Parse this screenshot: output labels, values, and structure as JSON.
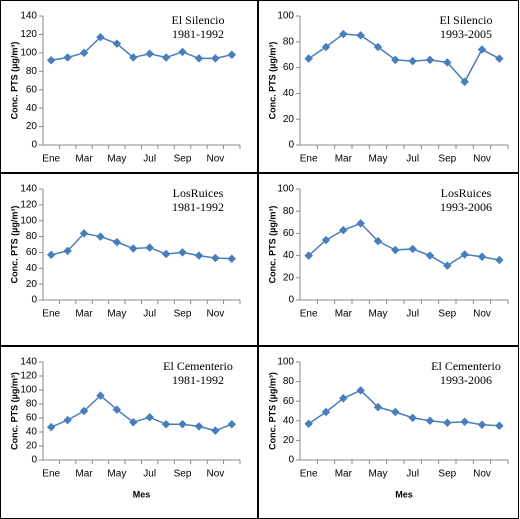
{
  "chart_data": [
    {
      "type": "line",
      "title": "El Silencio",
      "subtitle": "1981-1992",
      "y_label": "Conc. PTS (µg/m³)",
      "categories": [
        "Ene",
        null,
        "Mar",
        null,
        "May",
        null,
        "Jul",
        null,
        "Sep",
        null,
        "Nov",
        null
      ],
      "series": [
        {
          "color": "#4a7ebb",
          "values": [
            92,
            95,
            100,
            117,
            110,
            95,
            99,
            95,
            101,
            94,
            94,
            98
          ]
        }
      ],
      "ylim": [
        0,
        140
      ],
      "yticks": [
        0,
        20,
        40,
        60,
        80,
        100,
        120,
        140
      ]
    },
    {
      "type": "line",
      "title": "El Silencio",
      "subtitle": "1993-2005",
      "y_label": "Conc. PTS (µg/m³)",
      "categories": [
        "Ene",
        null,
        "Mar",
        null,
        "May",
        null,
        "Jul",
        null,
        "Sep",
        null,
        "Nov",
        null
      ],
      "series": [
        {
          "color": "#4a7ebb",
          "values": [
            67,
            76,
            86,
            85,
            76,
            66,
            65,
            66,
            64,
            49,
            74,
            67
          ]
        }
      ],
      "ylim": [
        0,
        100
      ],
      "yticks": [
        0,
        20,
        40,
        60,
        80,
        100
      ]
    },
    {
      "type": "line",
      "title": "LosRuices",
      "subtitle": "1981-1992",
      "y_label": "Conc. PTS (µg/m³)",
      "categories": [
        "Ene",
        null,
        "Mar",
        null,
        "May",
        null,
        "Jul",
        null,
        "Sep",
        null,
        "Nov",
        null
      ],
      "series": [
        {
          "color": "#4a7ebb",
          "values": [
            57,
            62,
            84,
            80,
            73,
            65,
            66,
            58,
            60,
            56,
            53,
            52
          ]
        }
      ],
      "ylim": [
        0,
        140
      ],
      "yticks": [
        0,
        20,
        40,
        60,
        80,
        100,
        120,
        140
      ]
    },
    {
      "type": "line",
      "title": "LosRuices",
      "subtitle": "1993-2006",
      "y_label": "Conc. PTS (µg/m³)",
      "categories": [
        "Ene",
        null,
        "Mar",
        null,
        "May",
        null,
        "Jul",
        null,
        "Sep",
        null,
        "Nov",
        null
      ],
      "series": [
        {
          "color": "#4a7ebb",
          "values": [
            40,
            54,
            63,
            69,
            53,
            45,
            46,
            40,
            31,
            41,
            39,
            36
          ]
        }
      ],
      "ylim": [
        0,
        100
      ],
      "yticks": [
        0,
        20,
        40,
        60,
        80,
        100
      ]
    },
    {
      "type": "line",
      "title": "El Cementerio",
      "subtitle": "1981-1992",
      "y_label": "Conc. PTS (µg/m³)",
      "x_label": "Mes",
      "categories": [
        "Ene",
        null,
        "Mar",
        null,
        "May",
        null,
        "Jul",
        null,
        "Sep",
        null,
        "Nov",
        null
      ],
      "series": [
        {
          "color": "#4a7ebb",
          "values": [
            47,
            57,
            70,
            92,
            72,
            54,
            61,
            51,
            51,
            48,
            42,
            51
          ]
        }
      ],
      "ylim": [
        0,
        140
      ],
      "yticks": [
        0,
        20,
        40,
        60,
        80,
        100,
        120,
        140
      ]
    },
    {
      "type": "line",
      "title": "El Cementerio",
      "subtitle": "1993-2006",
      "y_label": "Conc. PTS (µg/m³)",
      "x_label": "Mes",
      "categories": [
        "Ene",
        null,
        "Mar",
        null,
        "May",
        null,
        "Jul",
        null,
        "Sep",
        null,
        "Nov",
        null
      ],
      "series": [
        {
          "color": "#4a7ebb",
          "values": [
            37,
            49,
            63,
            71,
            54,
            49,
            43,
            40,
            38,
            39,
            36,
            35
          ]
        }
      ],
      "ylim": [
        0,
        100
      ],
      "yticks": [
        0,
        20,
        40,
        60,
        80,
        100
      ]
    }
  ]
}
